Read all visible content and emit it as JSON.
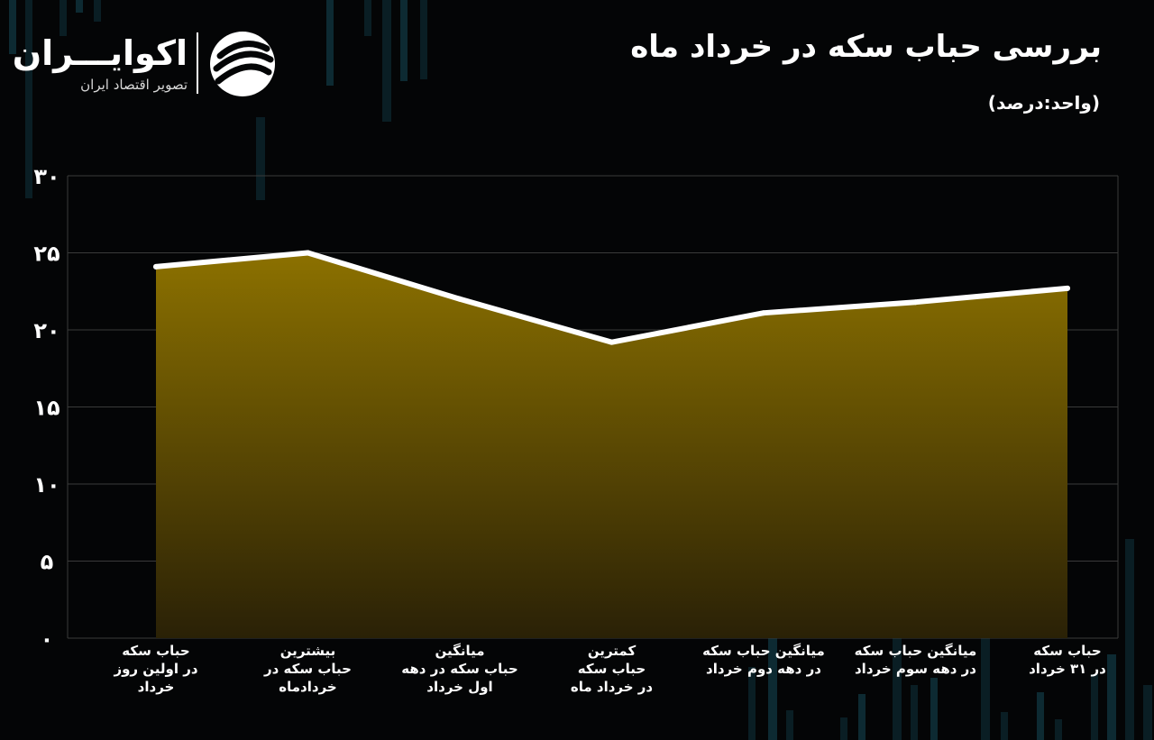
{
  "brand": {
    "name": "اکوایـــران",
    "tagline": "تصویر اقتصاد ایران",
    "mark_icon": "ecoiran-logo-icon"
  },
  "header": {
    "title": "بررسی حباب سکه در خرداد ماه",
    "unit": "(واحد:درصد)"
  },
  "colors": {
    "background": "#040506",
    "fill_top": "#8c7100",
    "fill_bottom": "#2a2106",
    "line": "#ffffff",
    "grid": "#3a3a3a"
  },
  "chart_data": {
    "type": "area",
    "categories": [
      "حباب سکه\nدر اولین روز\nخرداد",
      "بیشترین\nحباب سکه در\nخردادماه",
      "میانگین\nحباب سکه در دهه\nاول خرداد",
      "کمترین\nحباب سکه\nدر خرداد ماه",
      "میانگین حباب سکه\nدر دهه دوم خرداد",
      "میانگین حباب سکه\nدر دهه سوم خرداد",
      "حباب سکه\nدر ۳۱ خرداد"
    ],
    "values": [
      24.1,
      25,
      22,
      19.2,
      21.1,
      21.8,
      22.7
    ],
    "ylim": [
      0,
      30
    ],
    "yticks": [
      0,
      5,
      10,
      15,
      20,
      25,
      30
    ],
    "ytick_labels": [
      "۰",
      "۵",
      "۱۰",
      "۱۵",
      "۲۰",
      "۲۵",
      "۳۰"
    ],
    "grid": true,
    "legend": "none"
  }
}
